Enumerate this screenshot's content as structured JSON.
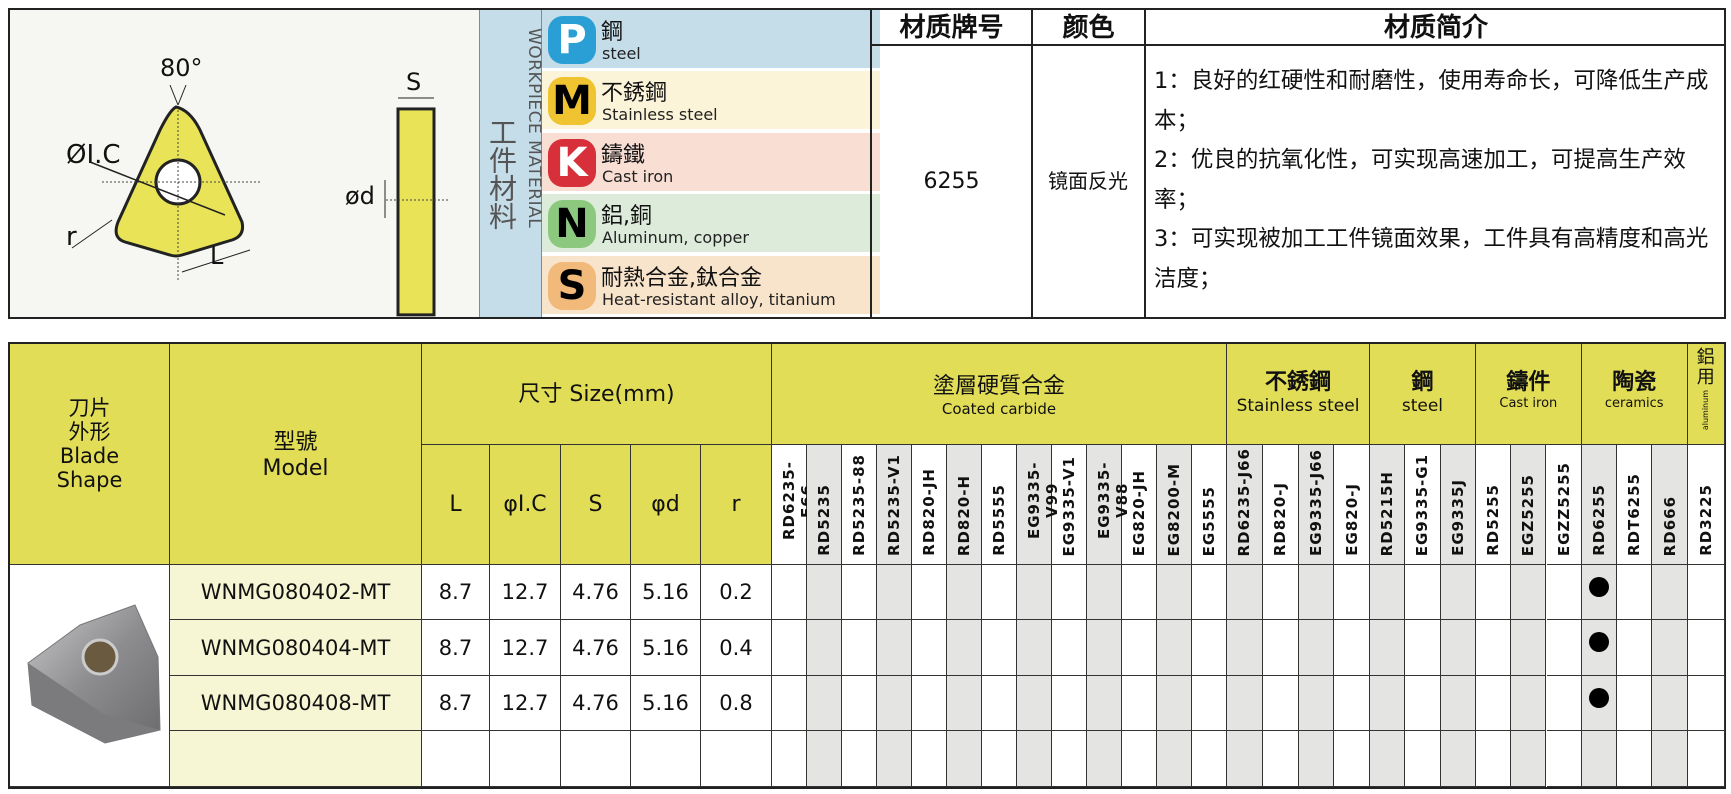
{
  "diagram": {
    "angle": "80°",
    "ic": "ØI.C",
    "s": "S",
    "d": "ød",
    "r": "r",
    "l": "L"
  },
  "workpiece": {
    "en": "WORKPIECE MATERIAL",
    "cn": "工件材料",
    "items": [
      {
        "letter": "P",
        "cn": "鋼",
        "en": "steel",
        "bg": "#c5dde8",
        "badge": "#2a9fd6",
        "fg": "#fff"
      },
      {
        "letter": "M",
        "cn": "不銹鋼",
        "en": "Stainless steel",
        "bg": "#fbf4d8",
        "badge": "#f0c330",
        "fg": "#000"
      },
      {
        "letter": "K",
        "cn": "鑄鐵",
        "en": "Cast iron",
        "bg": "#f9ded4",
        "badge": "#d8303a",
        "fg": "#fff"
      },
      {
        "letter": "N",
        "cn": "鋁,銅",
        "en": "Aluminum, copper",
        "bg": "#ddecda",
        "badge": "#8cc97f",
        "fg": "#000"
      },
      {
        "letter": "S",
        "cn": "耐熱合金,鈦合金",
        "en": "Heat-resistant alloy, titanium",
        "bg": "#f8e3cb",
        "badge": "#f1b97a",
        "fg": "#000"
      }
    ]
  },
  "info": {
    "h_grade": "材质牌号",
    "h_color": "颜色",
    "h_desc": "材质简介",
    "grade": "6255",
    "color": "镜面反光",
    "desc": [
      "1：良好的红硬性和耐磨性，使用寿命长，可降低生产成本；",
      "2：优良的抗氧化性，可实现高速加工，可提高生产效率；",
      "3：可实现被加工工件镜面效果，工件具有高精度和高光洁度；"
    ]
  },
  "table": {
    "h_shape_cn": "刀片\n外形",
    "h_shape_en": "Blade\nShape",
    "h_model_cn": "型號",
    "h_model_en": "Model",
    "h_size": "尺寸 Size(mm)",
    "size_cols": [
      "L",
      "φI.C",
      "S",
      "φd",
      "r"
    ],
    "groups": [
      {
        "cn": "塗層硬質合金",
        "en": "Coated carbide",
        "grades": [
          "RD6235-F66",
          "RD5235",
          "RD5235-88",
          "RD5235-V1",
          "RD820-JH",
          "RD820-H",
          "RD5555",
          "EG9335-V99",
          "EG9335-V1",
          "EG9335-V88",
          "EG820-JH",
          "EG8200-M",
          "EG5555"
        ]
      },
      {
        "cn": "不銹鋼",
        "en": "Stainless steel",
        "grades": [
          "RD6235-J66",
          "RD820-J",
          "EG9335-J66",
          "EG820-J"
        ]
      },
      {
        "cn": "鋼",
        "en": "steel",
        "grades": [
          "RD5215H",
          "EG9335-G1",
          "EG9335J"
        ]
      },
      {
        "cn": "鑄件",
        "en": "Cast iron",
        "grades": [
          "RD5255",
          "EGZ5255",
          "EGZZ5255"
        ]
      },
      {
        "cn": "陶瓷",
        "en": "ceramics",
        "grades": [
          "RD6255",
          "RDT6255",
          "RD666"
        ]
      },
      {
        "cn": "鋁用",
        "en": "aluminum",
        "grades": [
          "RD3225"
        ]
      }
    ],
    "rows": [
      {
        "model": "WNMG080402-MT",
        "size": [
          "8.7",
          "12.7",
          "4.76",
          "5.16",
          "0.2"
        ],
        "marks": [
          "RD6255"
        ]
      },
      {
        "model": "WNMG080404-MT",
        "size": [
          "8.7",
          "12.7",
          "4.76",
          "5.16",
          "0.4"
        ],
        "marks": [
          "RD6255"
        ]
      },
      {
        "model": "WNMG080408-MT",
        "size": [
          "8.7",
          "12.7",
          "4.76",
          "5.16",
          "0.8"
        ],
        "marks": [
          "RD6255"
        ]
      },
      {
        "model": "",
        "size": [
          "",
          "",
          "",
          "",
          ""
        ],
        "marks": []
      }
    ]
  }
}
